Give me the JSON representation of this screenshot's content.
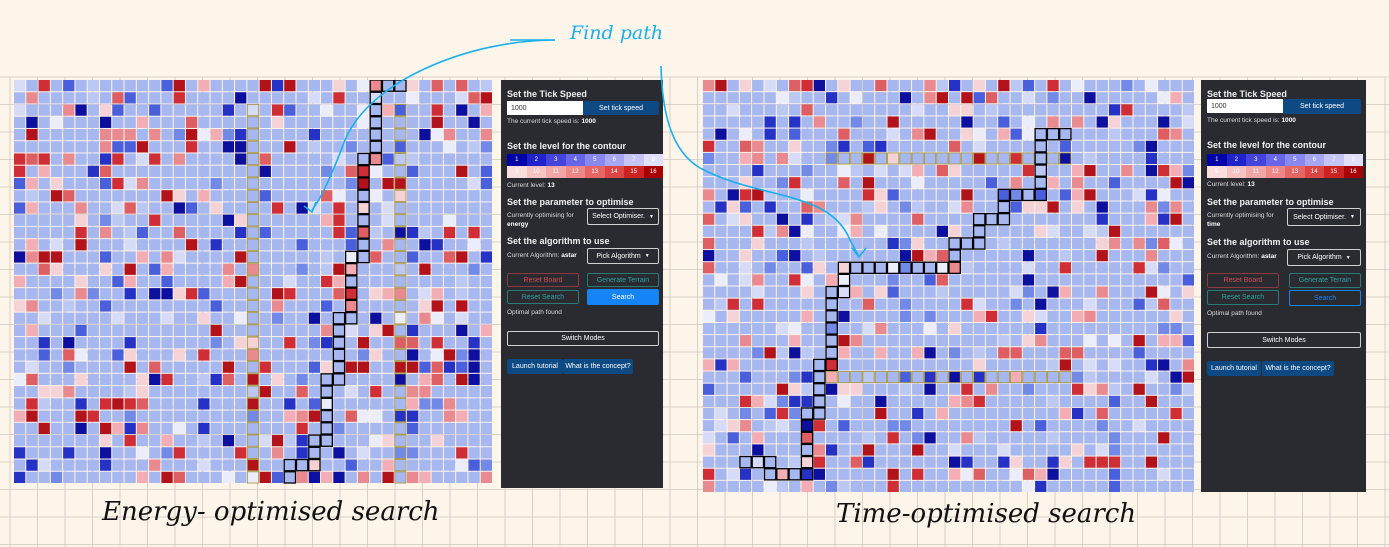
{
  "annotations": {
    "find_path": "Find path",
    "left_caption": "Energy- optimised search",
    "right_caption": "Time-optimised search"
  },
  "colors": {
    "paper": "#fdf4ea",
    "grid_line": "#cfc8c0",
    "panel_bg": "#2a2a31",
    "cell_base": "#a7b7f0",
    "path_border": "#000000",
    "contour_border": "#a89a4c",
    "pen_blue": "#1ab0ea"
  },
  "left_panel": {
    "tick": {
      "title": "Set the Tick Speed",
      "input_value": "1000",
      "button": "Set tick speed",
      "status_prefix": "The current tick speed is:",
      "status_value": "1000"
    },
    "contour": {
      "title": "Set the level for the contour",
      "levels_row1": [
        "1",
        "2",
        "3",
        "4",
        "5",
        "6",
        "7",
        "8"
      ],
      "levels_row2": [
        "9",
        "10",
        "11",
        "12",
        "13",
        "14",
        "15",
        "16"
      ],
      "current_label": "Current level:",
      "current_value": "13"
    },
    "optimise": {
      "title": "Set the parameter to optimise",
      "status_line1": "Currently optimising for",
      "status_value": "energy",
      "dropdown": "Select Optimiser."
    },
    "algorithm": {
      "title": "Set the algorithm to use",
      "status_label": "Current Algorithm:",
      "status_value": "astar",
      "dropdown": "Pick Algorithm"
    },
    "actions": {
      "reset_board": "Reset Board",
      "generate_terrain": "Generate Terrain",
      "reset_search": "Reset Search",
      "search": "Search",
      "status": "Optimal path found",
      "switch_modes": "Switch Modes",
      "launch_tutorial": "Launch tutorial",
      "concept": "What is the concept?"
    }
  },
  "right_panel": {
    "tick": {
      "title": "Set the Tick Speed",
      "input_value": "1000",
      "button": "Set tick speed",
      "status_prefix": "The current tick speed is:",
      "status_value": "1000"
    },
    "contour": {
      "title": "Set the level for the contour",
      "levels_row1": [
        "1",
        "2",
        "3",
        "4",
        "5",
        "6",
        "7",
        "8"
      ],
      "levels_row2": [
        "9",
        "10",
        "11",
        "12",
        "13",
        "14",
        "15",
        "16"
      ],
      "current_label": "Current level:",
      "current_value": "13"
    },
    "optimise": {
      "title": "Set the parameter to optimise",
      "status_line1": "Currently optimising for",
      "status_value": "time",
      "dropdown": "Select Optimiser."
    },
    "algorithm": {
      "title": "Set the algorithm to use",
      "status_label": "Current Algorithm:",
      "status_value": "astar",
      "dropdown": "Pick Algorithm"
    },
    "actions": {
      "reset_board": "Reset Board",
      "generate_terrain": "Generate Terrain",
      "reset_search": "Reset Search",
      "search": "Search",
      "status": "Optimal path found",
      "switch_modes": "Switch Modes",
      "launch_tutorial": "Launch tutorial",
      "concept": "What is the concept?"
    }
  },
  "level_colors": [
    "#0000a8",
    "#2222cc",
    "#4444dd",
    "#6666e6",
    "#8888ee",
    "#a6a6f2",
    "#c4c4f6",
    "#e0e0fa",
    "#fadede",
    "#f6c2c2",
    "#f2a6a6",
    "#ee8888",
    "#e66666",
    "#dd4444",
    "#cc2222",
    "#a80000"
  ],
  "terrain_palette": [
    "#a7b7f0",
    "#a7b7f0",
    "#a7b7f0",
    "#bcc8f4",
    "#d6dcf8",
    "#ecedfb",
    "#f4d2d6",
    "#f2aeb4",
    "#e88a8f",
    "#dd5f63",
    "#cf2e36",
    "#b2131a",
    "#0d0f9e",
    "#2632c6",
    "#4a5fdc",
    "#7389e8"
  ]
}
